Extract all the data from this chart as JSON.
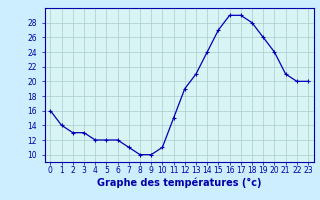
{
  "hours": [
    0,
    1,
    2,
    3,
    4,
    5,
    6,
    7,
    8,
    9,
    10,
    11,
    12,
    13,
    14,
    15,
    16,
    17,
    18,
    19,
    20,
    21,
    22,
    23
  ],
  "temperatures": [
    16,
    14,
    13,
    13,
    12,
    12,
    12,
    11,
    10,
    10,
    11,
    15,
    19,
    21,
    24,
    27,
    29,
    29,
    28,
    26,
    24,
    21,
    20,
    20
  ],
  "line_color": "#0000bb",
  "marker": "+",
  "marker_size": 3.5,
  "marker_lw": 0.8,
  "bg_color": "#cceeff",
  "plot_bg": "#d8f4f4",
  "grid_color": "#aacccc",
  "axis_color": "#0000aa",
  "xlabel": "Graphe des températures (°c)",
  "ylim": [
    9,
    30
  ],
  "yticks": [
    10,
    12,
    14,
    16,
    18,
    20,
    22,
    24,
    26,
    28
  ],
  "xtick_labels": [
    "0",
    "1",
    "2",
    "3",
    "4",
    "5",
    "6",
    "7",
    "8",
    "9",
    "10",
    "11",
    "12",
    "13",
    "14",
    "15",
    "16",
    "17",
    "18",
    "19",
    "20",
    "21",
    "22",
    "23"
  ],
  "tick_fontsize": 5.5,
  "label_fontsize": 7
}
